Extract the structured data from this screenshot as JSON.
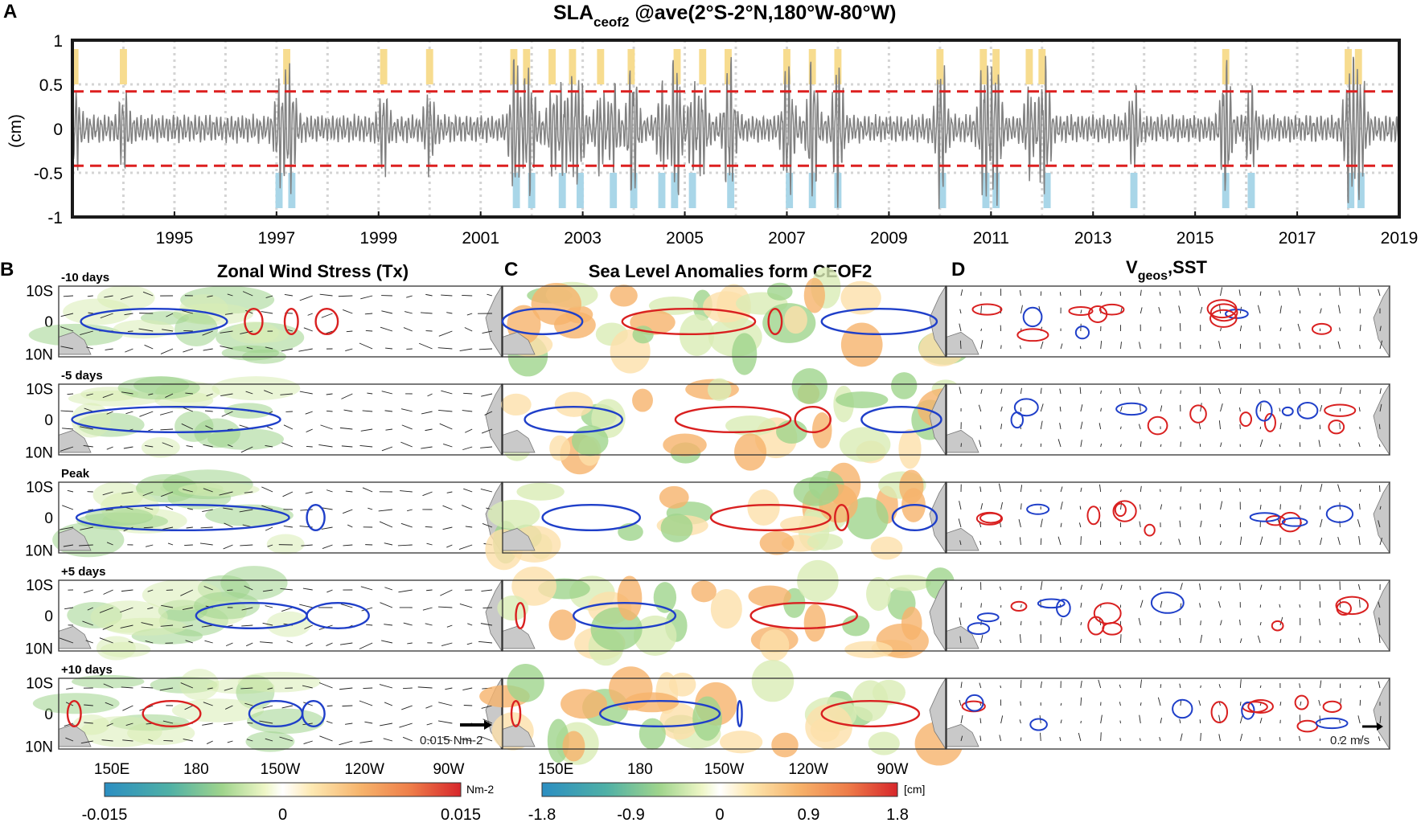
{
  "chart_data": [
    {
      "type": "line",
      "panel_letter": "A",
      "title_main": "SLA",
      "title_sub": "ceof2",
      "title_rest": " @ave(2°S-2°N,180°W-80°W)",
      "ylabel": "(cm)",
      "xlim": [
        1993,
        2019
      ],
      "ylim": [
        -1,
        1
      ],
      "yticks": [
        1,
        0.5,
        0,
        -0.5,
        -1
      ],
      "ytick_labels": [
        "1",
        "0.5",
        "0",
        "-0.5",
        "-1"
      ],
      "xtick_labels": [
        "1995",
        "1997",
        "1999",
        "2001",
        "2003",
        "2005",
        "2007",
        "2009",
        "2011",
        "2013",
        "2015",
        "2017",
        "2019"
      ],
      "threshold": 0.42,
      "threshold_color": "#dd1f1f",
      "series_color": "#808080",
      "positive_color": "#f7dc8f",
      "negative_color": "#a9d6e8",
      "positive_events": [
        1993.05,
        1994.0,
        1997.2,
        1999.1,
        2000.0,
        2001.65,
        2001.9,
        2002.4,
        2002.8,
        2003.35,
        2003.95,
        2004.85,
        2005.35,
        2005.85,
        2007.0,
        2007.5,
        2008.0,
        2010.0,
        2010.85,
        2011.1,
        2011.75,
        2012.0,
        2015.6,
        2018.0,
        2018.2
      ],
      "negative_events": [
        1997.05,
        1997.3,
        2001.7,
        2002.0,
        2002.6,
        2002.95,
        2003.6,
        2004.0,
        2004.55,
        2004.8,
        2005.15,
        2005.9,
        2007.05,
        2007.5,
        2008.0,
        2010.05,
        2010.9,
        2011.1,
        2012.1,
        2013.8,
        2015.6,
        2016.1,
        2018.05,
        2018.25
      ]
    },
    {
      "type": "map",
      "panel_letter": "B",
      "title": "Zonal Wind Stress (Tx)",
      "rows": [
        "-10 days",
        "-5 days",
        "Peak",
        "+5 days",
        "+10 days"
      ],
      "lat_labels": [
        "10S",
        "0",
        "10N"
      ],
      "lon_labels": [
        "150E",
        "180",
        "150W",
        "120W",
        "90W"
      ],
      "ref_vector": "0.015 Nm-2",
      "colorbar": {
        "unit": "Nm-2",
        "ticks": [
          "-0.015",
          "0",
          "0.015"
        ]
      }
    },
    {
      "type": "map",
      "panel_letter": "C",
      "title": "Sea Level Anomalies form CEOF2",
      "lon_labels": [
        "150E",
        "180",
        "150W",
        "120W",
        "90W"
      ],
      "colorbar": {
        "unit": "[cm]",
        "ticks": [
          "-1.8",
          "-0.9",
          "0",
          "0.9",
          "1.8"
        ]
      }
    },
    {
      "type": "map",
      "panel_letter": "D",
      "title_main": "V",
      "title_sub": "geos",
      "title_rest": ",SST",
      "ref_vector": "0.2 m/s"
    }
  ]
}
